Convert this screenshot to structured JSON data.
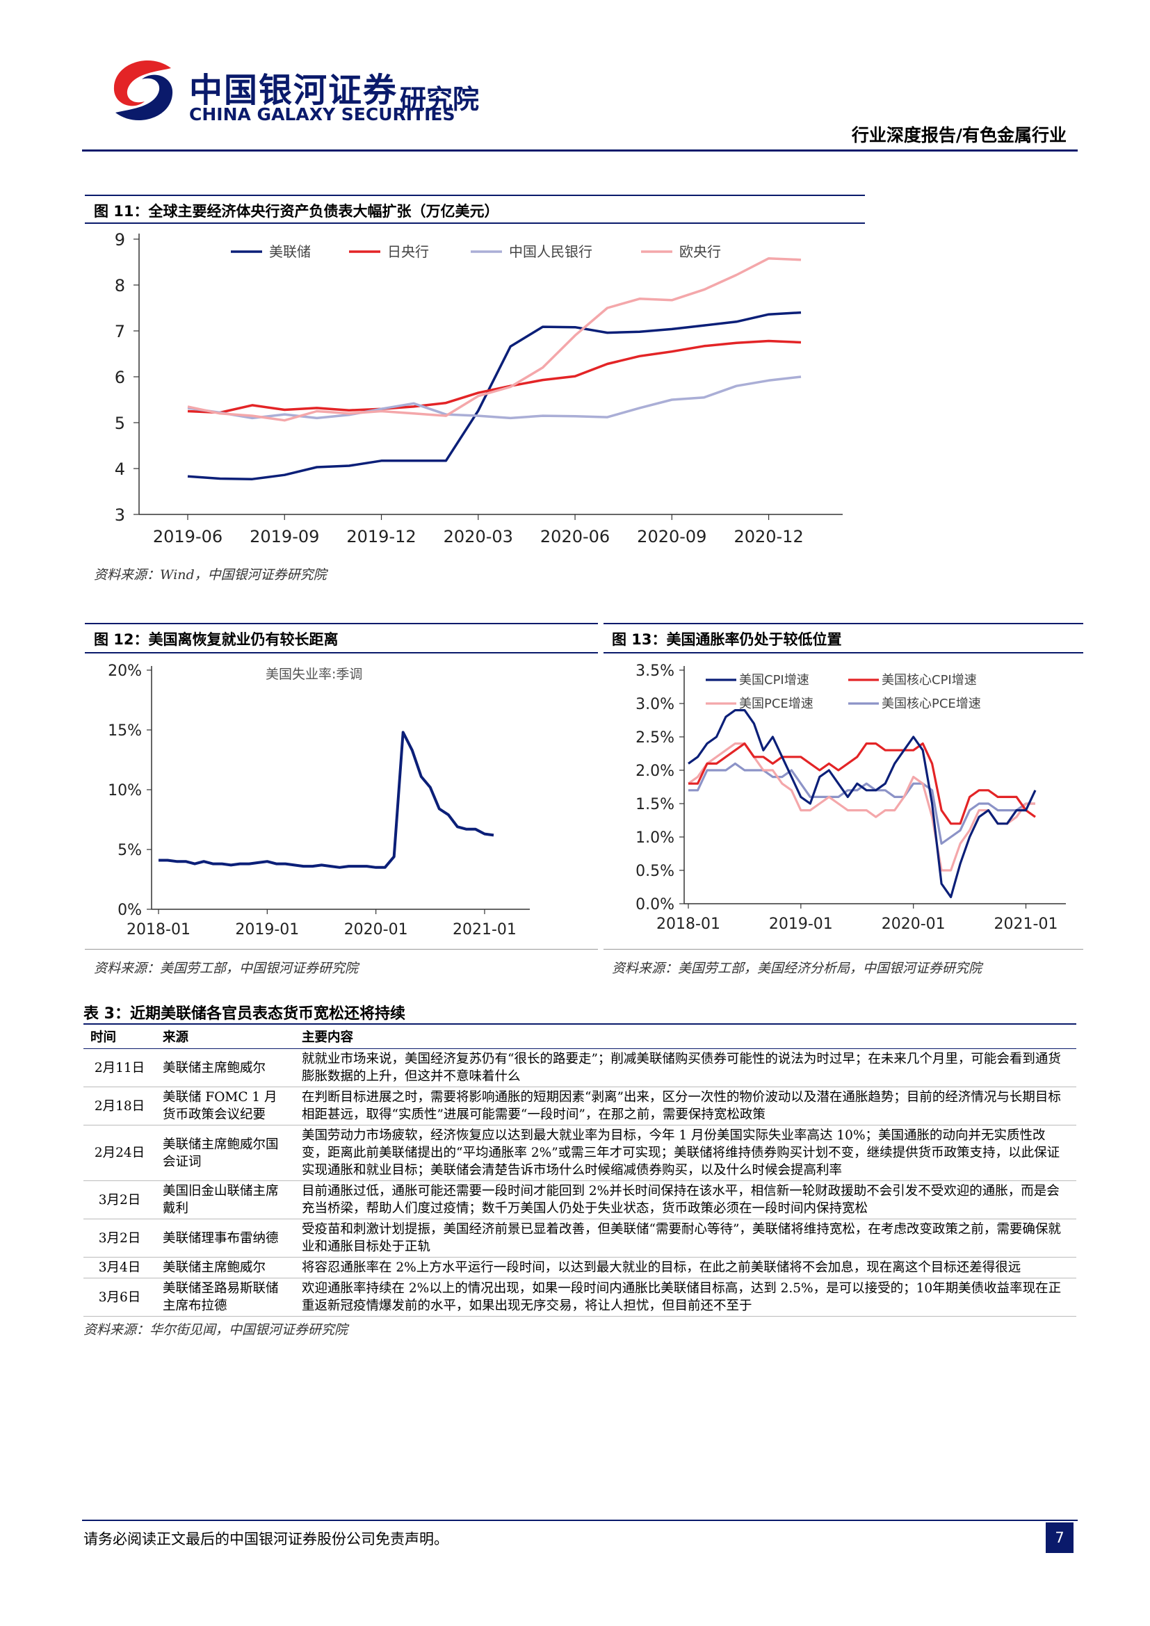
{
  "header": {
    "logo_cn": "中国银河证券",
    "logo_en": "CHINA GALAXY SECURITIES",
    "logo_inst": "研究院",
    "report_type": "行业深度报告/有色金属行业"
  },
  "figures": {
    "fig11": {
      "title": "图 11：全球主要经济体央行资产负债表大幅扩张（万亿美元）",
      "source": "资料来源：Wind，中国银河证券研究院"
    },
    "fig12": {
      "title": "图 12：美国离恢复就业仍有较长距离",
      "source": "资料来源：美国劳工部，中国银河证券研究院"
    },
    "fig13": {
      "title": "图 13：美国通胀率仍处于较低位置",
      "source": "资料来源：美国劳工部，美国经济分析局，中国银河证券研究院"
    }
  },
  "chart_data": [
    {
      "id": "fig11",
      "type": "line",
      "x": [
        "2019-06",
        "2019-07",
        "2019-08",
        "2019-09",
        "2019-10",
        "2019-11",
        "2019-12",
        "2020-01",
        "2020-02",
        "2020-03",
        "2020-04",
        "2020-05",
        "2020-06",
        "2020-07",
        "2020-08",
        "2020-09",
        "2020-10",
        "2020-11",
        "2020-12",
        "2021-01"
      ],
      "x_ticks": [
        "2019-06",
        "2019-09",
        "2019-12",
        "2020-03",
        "2020-06",
        "2020-09",
        "2020-12"
      ],
      "ylim": [
        3,
        9
      ],
      "y_ticks": [
        3,
        4,
        5,
        6,
        7,
        8,
        9
      ],
      "legend": "top",
      "series": [
        {
          "name": "美联储",
          "color": "#0b1f78",
          "values": [
            3.83,
            3.78,
            3.77,
            3.86,
            4.03,
            4.06,
            4.17,
            4.17,
            4.17,
            5.26,
            6.66,
            7.09,
            7.08,
            6.96,
            6.98,
            7.04,
            7.12,
            7.2,
            7.36,
            7.4
          ]
        },
        {
          "name": "日央行",
          "color": "#e32426",
          "values": [
            5.25,
            5.22,
            5.38,
            5.28,
            5.32,
            5.27,
            5.3,
            5.35,
            5.43,
            5.65,
            5.8,
            5.93,
            6.01,
            6.28,
            6.45,
            6.55,
            6.67,
            6.74,
            6.78,
            6.75
          ]
        },
        {
          "name": "中国人民银行",
          "color": "#aaaed6",
          "values": [
            5.32,
            5.22,
            5.1,
            5.18,
            5.1,
            5.17,
            5.3,
            5.42,
            5.18,
            5.15,
            5.1,
            5.15,
            5.14,
            5.12,
            5.32,
            5.5,
            5.55,
            5.8,
            5.92,
            6.0
          ]
        },
        {
          "name": "欧央行",
          "color": "#f4a7aa",
          "values": [
            5.35,
            5.2,
            5.15,
            5.05,
            5.25,
            5.2,
            5.25,
            5.2,
            5.15,
            5.58,
            5.78,
            6.2,
            6.9,
            7.5,
            7.7,
            7.67,
            7.9,
            8.22,
            8.58,
            8.55
          ]
        }
      ]
    },
    {
      "id": "fig12",
      "type": "line",
      "x_ticks": [
        "2018-01",
        "2019-01",
        "2020-01",
        "2021-01"
      ],
      "x_start": "2018-01",
      "ylim": [
        0,
        20
      ],
      "y_ticks": [
        "0%",
        "5%",
        "10%",
        "15%",
        "20%"
      ],
      "legend": "top",
      "series": [
        {
          "name": "美国失业率:季调",
          "color": "#0b1f78",
          "values": [
            4.1,
            4.1,
            4.0,
            4.0,
            3.8,
            4.0,
            3.8,
            3.8,
            3.7,
            3.8,
            3.8,
            3.9,
            4.0,
            3.8,
            3.8,
            3.7,
            3.6,
            3.6,
            3.7,
            3.6,
            3.5,
            3.6,
            3.6,
            3.6,
            3.5,
            3.5,
            4.4,
            14.8,
            13.3,
            11.1,
            10.2,
            8.4,
            7.9,
            6.9,
            6.7,
            6.7,
            6.3,
            6.2
          ]
        }
      ]
    },
    {
      "id": "fig13",
      "type": "line",
      "x_ticks": [
        "2018-01",
        "2019-01",
        "2020-01",
        "2021-01"
      ],
      "x_start": "2018-01",
      "ylim": [
        0,
        3.5
      ],
      "y_ticks": [
        "0.0%",
        "0.5%",
        "1.0%",
        "1.5%",
        "2.0%",
        "2.5%",
        "3.0%",
        "3.5%"
      ],
      "legend": "top",
      "series": [
        {
          "name": "美国CPI增速",
          "color": "#0b1f78",
          "values": [
            2.1,
            2.2,
            2.4,
            2.5,
            2.8,
            2.9,
            2.9,
            2.7,
            2.3,
            2.5,
            2.2,
            1.9,
            1.6,
            1.5,
            1.9,
            2.0,
            1.8,
            1.6,
            1.8,
            1.7,
            1.7,
            1.8,
            2.1,
            2.3,
            2.5,
            2.3,
            1.5,
            0.3,
            0.1,
            0.6,
            1.0,
            1.3,
            1.4,
            1.2,
            1.2,
            1.4,
            1.4,
            1.7
          ]
        },
        {
          "name": "美国核心CPI增速",
          "color": "#e32426",
          "values": [
            1.8,
            1.8,
            2.1,
            2.1,
            2.2,
            2.3,
            2.4,
            2.2,
            2.2,
            2.1,
            2.2,
            2.2,
            2.2,
            2.1,
            2.0,
            2.1,
            2.0,
            2.1,
            2.2,
            2.4,
            2.4,
            2.3,
            2.3,
            2.3,
            2.3,
            2.4,
            2.1,
            1.4,
            1.2,
            1.2,
            1.6,
            1.7,
            1.7,
            1.6,
            1.6,
            1.6,
            1.4,
            1.3
          ]
        },
        {
          "name": "美国PCE增速",
          "color": "#f4a7aa",
          "values": [
            1.8,
            1.9,
            2.1,
            2.2,
            2.3,
            2.4,
            2.4,
            2.2,
            2.0,
            2.0,
            1.8,
            1.7,
            1.4,
            1.4,
            1.5,
            1.6,
            1.5,
            1.4,
            1.4,
            1.4,
            1.3,
            1.4,
            1.4,
            1.6,
            1.9,
            1.8,
            1.3,
            0.5,
            0.5,
            0.9,
            1.1,
            1.4,
            1.4,
            1.2,
            1.2,
            1.3,
            1.5,
            1.5
          ]
        },
        {
          "name": "美国核心PCE增速",
          "color": "#8c93c7",
          "values": [
            1.7,
            1.7,
            2.0,
            2.0,
            2.0,
            2.1,
            2.0,
            2.0,
            2.0,
            1.9,
            1.9,
            2.0,
            1.8,
            1.6,
            1.6,
            1.6,
            1.6,
            1.7,
            1.7,
            1.8,
            1.7,
            1.7,
            1.6,
            1.6,
            1.8,
            1.8,
            1.7,
            0.9,
            1.0,
            1.1,
            1.4,
            1.5,
            1.5,
            1.4,
            1.4,
            1.4,
            1.5,
            1.5
          ]
        }
      ]
    }
  ],
  "table3": {
    "title": "表 3：近期美联储各官员表态货币宽松还将持续",
    "headers": [
      "时间",
      "来源",
      "主要内容"
    ],
    "rows": [
      {
        "date": "2月11日",
        "source": "美联储主席鲍威尔",
        "content": "就就业市场来说，美国经济复苏仍有“很长的路要走”；削减美联储购买债券可能性的说法为时过早；在未来几个月里，可能会看到通货膨胀数据的上升，但这并不意味着什么"
      },
      {
        "date": "2月18日",
        "source": "美联储 FOMC 1 月货币政策会议纪要",
        "content": "在判断目标进展之时，需要将影响通胀的短期因素“剥离”出来，区分一次性的物价波动以及潜在通胀趋势；目前的经济情况与长期目标相距甚远，取得“实质性”进展可能需要“一段时间”，在那之前，需要保持宽松政策"
      },
      {
        "date": "2月24日",
        "source": "美联储主席鲍威尔国会证词",
        "content": "美国劳动力市场疲软，经济恢复应以达到最大就业率为目标，今年 1 月份美国实际失业率高达 10%；美国通胀的动向并无实质性改变，距离此前美联储提出的“平均通胀率 2%”或需三年才可实现；美联储将维持债券购买计划不变，继续提供货币政策支持，以此保证实现通胀和就业目标；美联储会清楚告诉市场什么时候缩减债券购买，以及什么时候会提高利率"
      },
      {
        "date": "3月2日",
        "source": "美国旧金山联储主席戴利",
        "content": "目前通胀过低，通胀可能还需要一段时间才能回到 2%并长时间保持在该水平，相信新一轮财政援助不会引发不受欢迎的通胀，而是会充当桥梁，帮助人们度过疫情；数千万美国人仍处于失业状态，货币政策必须在一段时间内保持宽松"
      },
      {
        "date": "3月2日",
        "source": "美联储理事布雷纳德",
        "content": "受疫苗和刺激计划提振，美国经济前景已显着改善，但美联储“需要耐心等待”，美联储将维持宽松，在考虑改变政策之前，需要确保就业和通胀目标处于正轨"
      },
      {
        "date": "3月4日",
        "source": "美联储主席鲍威尔",
        "content": "将容忍通胀率在 2%上方水平运行一段时间，以达到最大就业的目标，在此之前美联储将不会加息，现在离这个目标还差得很远"
      },
      {
        "date": "3月6日",
        "source": "美联储圣路易斯联储主席布拉德",
        "content": "欢迎通胀率持续在 2%以上的情况出现，如果一段时间内通胀比美联储目标高，达到 2.5%，是可以接受的；10年期美债收益率现在正重返新冠疫情爆发前的水平，如果出现无序交易，将让人担忧，但目前还不至于"
      }
    ],
    "source": "资料来源：华尔街见闻，中国银河证券研究院"
  },
  "footer": {
    "disclaimer": "请务必阅读正文最后的中国银河证券股份公司免责声明。",
    "page_number": "7"
  }
}
